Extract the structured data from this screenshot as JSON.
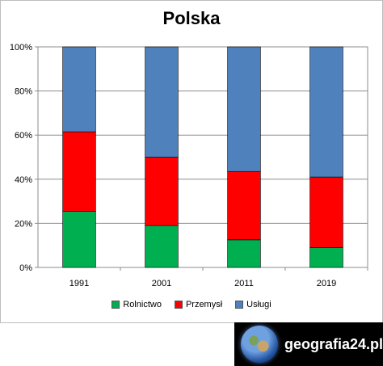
{
  "chart_data": {
    "type": "bar",
    "stacked": true,
    "title": "Polska",
    "categories": [
      "1991",
      "2001",
      "2011",
      "2019"
    ],
    "series": [
      {
        "name": "Rolnictwo",
        "color": "#00b050",
        "values": [
          25.5,
          19,
          12.5,
          9
        ]
      },
      {
        "name": "Przemysł",
        "color": "#ff0000",
        "values": [
          36,
          31,
          31,
          32
        ]
      },
      {
        "name": "Usługi",
        "color": "#4f81bd",
        "values": [
          38.5,
          50,
          56.5,
          59
        ]
      }
    ],
    "ylim": [
      0,
      100
    ],
    "yticks": [
      "0%",
      "20%",
      "40%",
      "60%",
      "80%",
      "100%"
    ],
    "ytick_values": [
      0,
      20,
      40,
      60,
      80,
      100
    ],
    "grid": true,
    "legend": "bottom"
  },
  "brand": {
    "text": "geografia24.pl",
    "icon": "globe-icon"
  }
}
